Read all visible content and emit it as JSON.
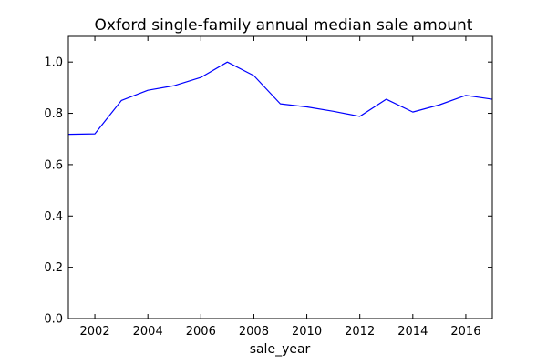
{
  "chart_data": {
    "type": "line",
    "title": "Oxford single-family annual median sale amount",
    "xlabel": "sale_year",
    "ylabel": "",
    "xlim": [
      2001,
      2017
    ],
    "ylim": [
      0.0,
      1.1
    ],
    "grid": false,
    "x_ticks": [
      2002,
      2004,
      2006,
      2008,
      2010,
      2012,
      2014,
      2016
    ],
    "x_tick_labels": [
      "2002",
      "2004",
      "2006",
      "2008",
      "2010",
      "2012",
      "2014",
      "2016"
    ],
    "y_ticks": [
      0.0,
      0.2,
      0.4,
      0.6,
      0.8,
      1.0
    ],
    "y_tick_labels": [
      "0.0",
      "0.2",
      "0.4",
      "0.6",
      "0.8",
      "1.0"
    ],
    "color": "#0000ff",
    "series": [
      {
        "x": [
          2001,
          2002,
          2003,
          2004,
          2005,
          2006,
          2007,
          2008,
          2009,
          2010,
          2011,
          2012,
          2013,
          2014,
          2015,
          2016,
          2017
        ],
        "values": [
          0.718,
          0.72,
          0.85,
          0.89,
          0.908,
          0.94,
          1.0,
          0.947,
          0.837,
          0.825,
          0.808,
          0.788,
          0.855,
          0.805,
          0.833,
          0.87,
          0.855
        ]
      }
    ]
  }
}
